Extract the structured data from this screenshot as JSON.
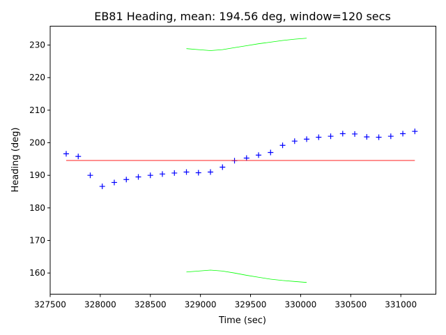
{
  "chart_data": {
    "type": "scatter",
    "title": "EB81 Heading, mean: 194.56 deg, window=120 secs",
    "xlabel": "Time (sec)",
    "ylabel": "Heading (deg)",
    "xlim": [
      327500,
      331350
    ],
    "ylim": [
      153.5,
      235.8
    ],
    "xticks": [
      327500,
      328000,
      328500,
      329000,
      329500,
      330000,
      330500,
      331000
    ],
    "yticks": [
      160,
      170,
      180,
      190,
      200,
      210,
      220,
      230
    ],
    "grid": false,
    "legend": "none",
    "series": [
      {
        "kind": "points",
        "marker": "+",
        "color": "#0000ff",
        "x": [
          327660,
          327780,
          327900,
          328020,
          328140,
          328260,
          328380,
          328500,
          328620,
          328740,
          328860,
          328980,
          329100,
          329220,
          329340,
          329460,
          329580,
          329700,
          329820,
          329940,
          330060,
          330180,
          330300,
          330420,
          330540,
          330660,
          330780,
          330900,
          331020,
          331140
        ],
        "y": [
          196.6,
          195.8,
          190.0,
          186.6,
          187.8,
          188.7,
          189.5,
          190.0,
          190.4,
          190.7,
          191.0,
          190.8,
          191.0,
          192.5,
          194.5,
          195.3,
          196.2,
          197.0,
          199.2,
          200.5,
          201.1,
          201.7,
          202.0,
          202.8,
          202.7,
          201.8,
          201.7,
          202.0,
          202.8,
          203.5
        ]
      },
      {
        "kind": "line",
        "color": "#ff0000",
        "x": [
          327660,
          331140
        ],
        "y": [
          194.56,
          194.56
        ]
      },
      {
        "kind": "line",
        "color": "#00ff00",
        "x": [
          328860,
          328980,
          329100,
          329220,
          329340,
          329460,
          329580,
          329700,
          329820,
          329940,
          330060
        ],
        "y": [
          228.9,
          228.6,
          228.3,
          228.6,
          229.2,
          229.8,
          230.4,
          230.9,
          231.4,
          231.8,
          232.1
        ]
      },
      {
        "kind": "line",
        "color": "#00ff00",
        "x": [
          328860,
          328980,
          329100,
          329220,
          329340,
          329460,
          329580,
          329700,
          329820,
          329940,
          330060
        ],
        "y": [
          160.3,
          160.6,
          160.9,
          160.6,
          160.0,
          159.3,
          158.7,
          158.1,
          157.7,
          157.4,
          157.1
        ]
      }
    ]
  }
}
